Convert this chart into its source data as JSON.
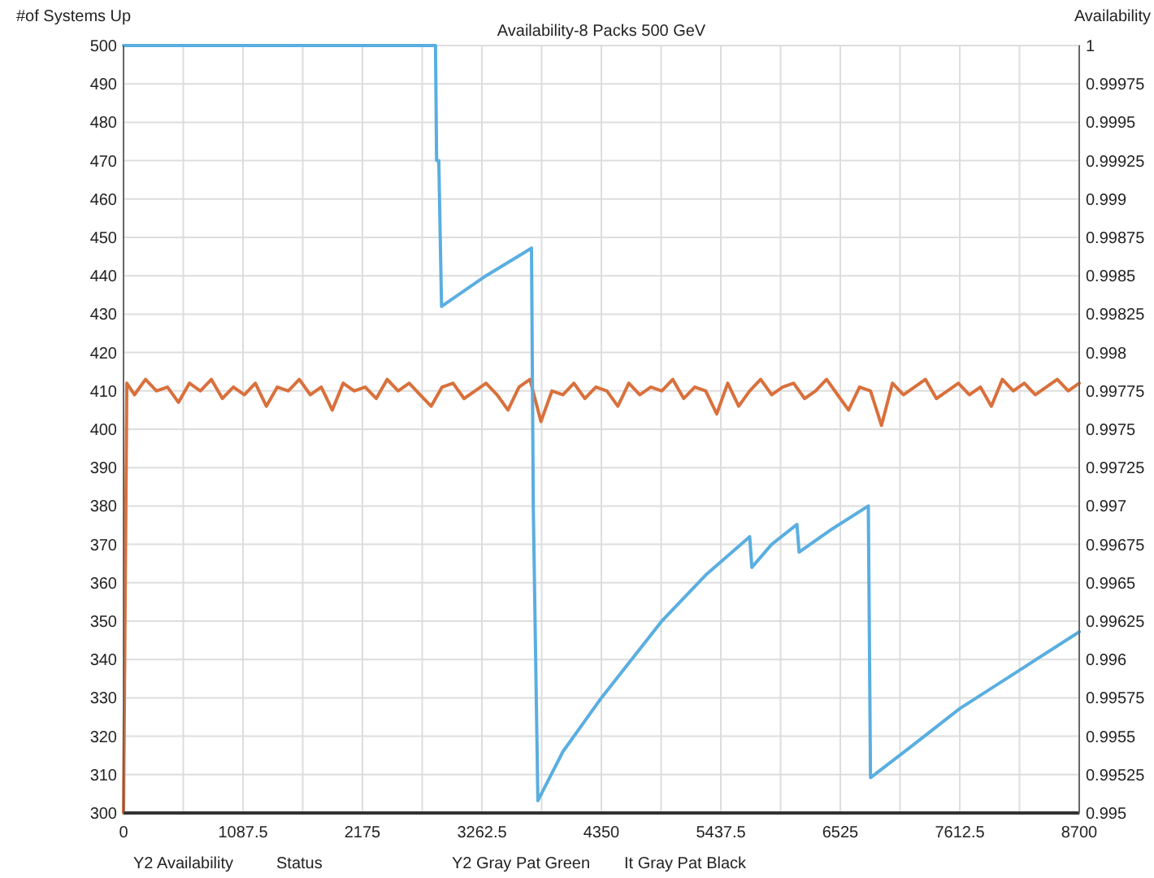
{
  "chart_data": {
    "type": "line",
    "title": "Availability-8 Packs 500 GeV",
    "ylabel": "#of Systems Up",
    "y2label": "Availability",
    "annotations": [
      "Y2 Availability",
      "Status",
      "Y2 Gray Pat Green",
      "It Gray Pat Black"
    ],
    "xlim": [
      0,
      8700
    ],
    "xticks": [
      0,
      {
        "value": 543.75,
        "label": null
      },
      1087.5,
      {
        "value": 1631.25,
        "label": null
      },
      2175,
      {
        "value": 2718.75,
        "label": null
      },
      3262.5,
      {
        "value": 3806.25,
        "label": null
      },
      4350,
      {
        "value": 4893.75,
        "label": null
      },
      5437.5,
      {
        "value": 5981.25,
        "label": null
      },
      6525,
      {
        "value": 7068.75,
        "label": null
      },
      7612.5,
      {
        "value": 8156.25,
        "label": null
      },
      8700
    ],
    "ylim": [
      300,
      500
    ],
    "yticks": [
      300,
      310,
      320,
      330,
      340,
      350,
      360,
      370,
      380,
      390,
      400,
      410,
      420,
      430,
      440,
      450,
      460,
      470,
      480,
      490,
      500
    ],
    "y2lim": [
      0.995,
      1
    ],
    "y2ticks": [
      0.995,
      0.99525,
      0.9955,
      0.99575,
      0.996,
      0.99625,
      0.9965,
      0.99675,
      0.997,
      0.99725,
      0.9975,
      0.99775,
      0.998,
      0.99825,
      0.9985,
      0.99875,
      0.999,
      0.99925,
      0.9995,
      0.99975,
      1
    ],
    "grid": true,
    "line_style": "solid",
    "marker": "none",
    "series": [
      {
        "color": "#d9703c",
        "x": [
          0,
          30,
          100,
          200,
          300,
          400,
          500,
          600,
          700,
          800,
          900,
          1000,
          1100,
          1200,
          1300,
          1400,
          1500,
          1600,
          1700,
          1800,
          1900,
          2000,
          2100,
          2200,
          2300,
          2400,
          2500,
          2600,
          2700,
          2800,
          2900,
          3000,
          3100,
          3200,
          3300,
          3400,
          3500,
          3600,
          3700,
          3800,
          3900,
          4000,
          4100,
          4200,
          4300,
          4400,
          4500,
          4600,
          4700,
          4800,
          4900,
          5000,
          5100,
          5200,
          5300,
          5400,
          5500,
          5600,
          5700,
          5800,
          5900,
          6000,
          6100,
          6200,
          6300,
          6400,
          6500,
          6600,
          6700,
          6800,
          6900,
          7000,
          7100,
          7200,
          7300,
          7400,
          7500,
          7600,
          7700,
          7800,
          7900,
          8000,
          8100,
          8200,
          8300,
          8400,
          8500,
          8600,
          8700
        ],
        "values": [
          300,
          412,
          409,
          413,
          410,
          411,
          407,
          412,
          410,
          413,
          408,
          411,
          409,
          412,
          406,
          411,
          410,
          413,
          409,
          411,
          405,
          412,
          410,
          411,
          408,
          413,
          410,
          412,
          409,
          406,
          411,
          412,
          408,
          410,
          412,
          409,
          405,
          411,
          413,
          402,
          410,
          409,
          412,
          408,
          411,
          410,
          406,
          412,
          409,
          411,
          410,
          413,
          408,
          411,
          410,
          404,
          412,
          406,
          410,
          413,
          409,
          411,
          412,
          408,
          410,
          413,
          409,
          405,
          411,
          410,
          401,
          412,
          409,
          411,
          413,
          408,
          410,
          412,
          409,
          411,
          406,
          413,
          410,
          412,
          409,
          411,
          413,
          410,
          412
        ]
      },
      {
        "color": "#5aaee0",
        "axis": "y2",
        "x": [
          0,
          2840,
          2850,
          2870,
          2895,
          3300,
          3714,
          3730,
          3772,
          4000,
          4350,
          4900,
          5300,
          5700,
          5720,
          5900,
          6130,
          6150,
          6450,
          6780,
          6800,
          7200,
          7612,
          8200,
          8700
        ],
        "values": [
          1,
          1,
          0.99925,
          0.99925,
          0.9983,
          0.9985,
          0.99868,
          0.997,
          0.99508,
          0.9954,
          0.99575,
          0.99625,
          0.99655,
          0.9968,
          0.9966,
          0.99675,
          0.99688,
          0.9967,
          0.99685,
          0.997,
          0.99523,
          0.99545,
          0.99568,
          0.99595,
          0.99618
        ]
      }
    ]
  }
}
